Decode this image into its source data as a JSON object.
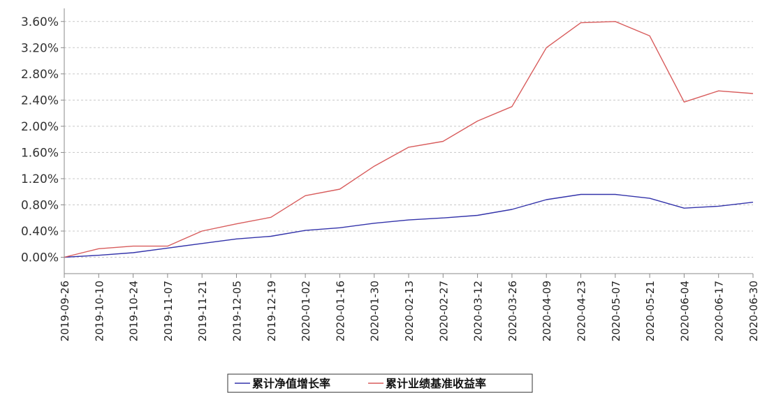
{
  "chart_data": {
    "type": "line",
    "title": "",
    "xlabel": "",
    "ylabel": "",
    "ylim": [
      -0.0025,
      0.038
    ],
    "y_ticks": [
      0.0,
      0.004,
      0.008,
      0.012,
      0.016,
      0.02,
      0.024,
      0.028,
      0.032,
      0.036
    ],
    "y_tick_labels": [
      "0.00%",
      "0.40%",
      "0.80%",
      "1.20%",
      "1.60%",
      "2.00%",
      "2.40%",
      "2.80%",
      "3.20%",
      "3.60%"
    ],
    "x_tick_labels": [
      "2019-09-26",
      "2019-10-10",
      "2019-10-24",
      "2019-11-07",
      "2019-11-21",
      "2019-12-05",
      "2019-12-19",
      "2020-01-02",
      "2020-01-16",
      "2020-01-30",
      "2020-02-13",
      "2020-02-27",
      "2020-03-12",
      "2020-03-26",
      "2020-04-09",
      "2020-04-23",
      "2020-05-07",
      "2020-05-21",
      "2020-06-04",
      "2020-06-17",
      "2020-06-30"
    ],
    "grid": true,
    "legend_placement": "bottom-center",
    "colors": {
      "nav": "#3333aa",
      "benchmark": "#d85c5c",
      "grid": "#c8c8c8",
      "axis": "#888888"
    },
    "x": [
      "2019-09-26",
      "2019-10-10",
      "2019-10-24",
      "2019-11-07",
      "2019-11-21",
      "2019-12-05",
      "2019-12-19",
      "2020-01-02",
      "2020-01-16",
      "2020-01-30",
      "2020-02-13",
      "2020-02-27",
      "2020-03-12",
      "2020-03-26",
      "2020-04-09",
      "2020-04-23",
      "2020-05-07",
      "2020-05-21",
      "2020-06-04",
      "2020-06-17",
      "2020-06-30"
    ],
    "series": [
      {
        "name": "累计净值增长率",
        "color": "#3333aa",
        "values": [
          0.0,
          0.0003,
          0.0007,
          0.0014,
          0.0021,
          0.0028,
          0.0032,
          0.0041,
          0.0045,
          0.0052,
          0.0057,
          0.006,
          0.0064,
          0.0073,
          0.0088,
          0.0096,
          0.0096,
          0.009,
          0.0075,
          0.0078,
          0.0084
        ]
      },
      {
        "name": "累计业绩基准收益率",
        "color": "#d85c5c",
        "values": [
          0.0,
          0.0013,
          0.0017,
          0.0017,
          0.004,
          0.0051,
          0.0061,
          0.0094,
          0.0104,
          0.0139,
          0.0168,
          0.0177,
          0.0208,
          0.023,
          0.032,
          0.0358,
          0.036,
          0.0338,
          0.0237,
          0.0254,
          0.025
        ]
      }
    ]
  },
  "legend": {
    "items": [
      {
        "label": "累计净值增长率"
      },
      {
        "label": "累计业绩基准收益率"
      }
    ]
  }
}
